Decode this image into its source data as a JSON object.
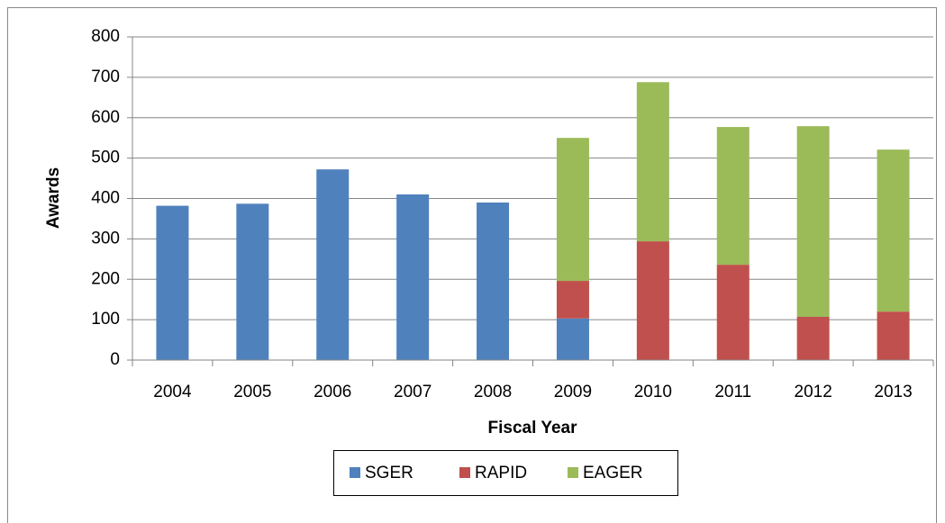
{
  "chart_data": {
    "type": "stacked-bar",
    "x_label": "Fiscal Year",
    "y_label": "Awards",
    "categories": [
      "2004",
      "2005",
      "2006",
      "2007",
      "2008",
      "2009",
      "2010",
      "2011",
      "2012",
      "2013"
    ],
    "series": [
      {
        "name": "SGER",
        "color": "#4f81bd",
        "values": [
          382,
          387,
          472,
          410,
          390,
          103,
          0,
          0,
          0,
          0
        ]
      },
      {
        "name": "RAPID",
        "color": "#c0504d",
        "values": [
          0,
          0,
          0,
          0,
          0,
          93,
          294,
          236,
          107,
          120
        ]
      },
      {
        "name": "EAGER",
        "color": "#9bbb59",
        "values": [
          0,
          0,
          0,
          0,
          0,
          354,
          394,
          341,
          472,
          401
        ]
      }
    ],
    "ylim": [
      0,
      800
    ],
    "yticks": [
      0,
      100,
      200,
      300,
      400,
      500,
      600,
      700,
      800
    ],
    "grid": true,
    "legend": "bottom"
  }
}
